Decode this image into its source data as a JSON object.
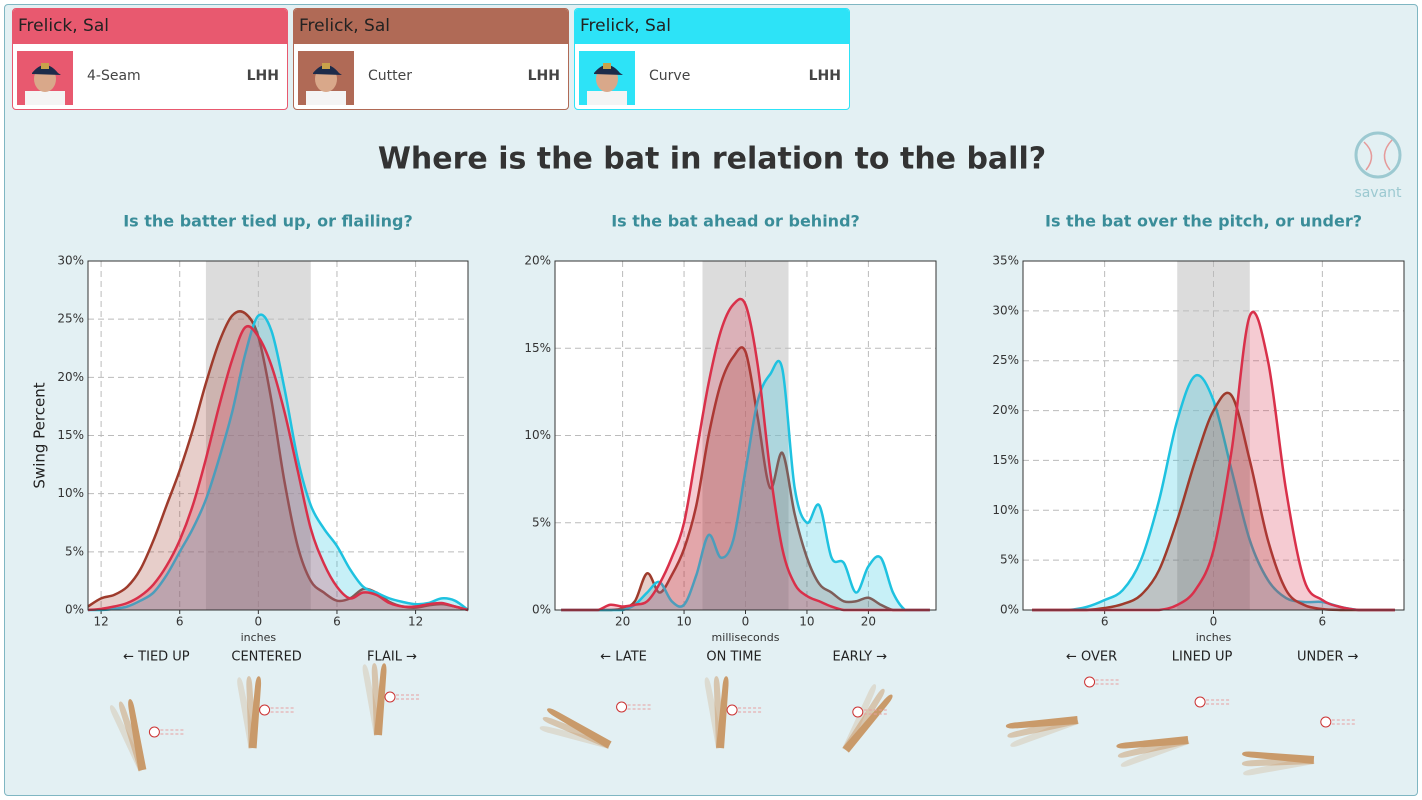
{
  "cards": [
    {
      "name": "Frelick, Sal",
      "pitch": "4-Seam",
      "hand": "LHH",
      "color": "#e8596f"
    },
    {
      "name": "Frelick, Sal",
      "pitch": "Cutter",
      "hand": "LHH",
      "color": "#b06a56"
    },
    {
      "name": "Frelick, Sal",
      "pitch": "Curve",
      "hand": "LHH",
      "color": "#2de3f7"
    }
  ],
  "title": "Where is the bat in relation to the ball?",
  "logo": "savant",
  "chart_data": [
    {
      "type": "area",
      "title": "Is the batter tied up, or flailing?",
      "y_label": "Swing Percent",
      "x_label": "inches",
      "zone_labels": [
        "← TIED UP",
        "CENTERED",
        "FLAIL →"
      ],
      "xlim": [
        -13,
        16
      ],
      "ylim": [
        0,
        30
      ],
      "highlight_range": [
        -4,
        4
      ],
      "grid": true,
      "xticks": [
        {
          "value": -12,
          "label": "12"
        },
        {
          "value": -6,
          "label": "6"
        },
        0,
        6,
        12
      ],
      "yticks": [
        {
          "value": 0,
          "label": "0%"
        },
        {
          "value": 5,
          "label": "5%"
        },
        {
          "value": 10,
          "label": "10%"
        },
        {
          "value": 15,
          "label": "15%"
        },
        {
          "value": 20,
          "label": "20%"
        },
        {
          "value": 25,
          "label": "25%"
        },
        {
          "value": 30,
          "label": "30%"
        }
      ],
      "x": [
        -13,
        -12,
        -11,
        -10,
        -9,
        -8,
        -7,
        -6,
        -5,
        -4,
        -3,
        -2,
        -1,
        0,
        1,
        2,
        3,
        4,
        5,
        6,
        7,
        8,
        9,
        10,
        11,
        12,
        13,
        14,
        15,
        16
      ],
      "series": [
        {
          "color": "#9e3b2c",
          "values": [
            0.3,
            1,
            1.3,
            2,
            3.5,
            6,
            9,
            12,
            15.5,
            19.5,
            23,
            25.3,
            25.5,
            23.5,
            18,
            11,
            5.5,
            2.5,
            1.5,
            0.8,
            1,
            1.8,
            1.5,
            0.7,
            0.3,
            0.2,
            0.4,
            0.5,
            0.3,
            0
          ]
        },
        {
          "color": "#1fc2e0",
          "values": [
            0,
            0,
            0.1,
            0.3,
            0.8,
            1.5,
            3,
            5,
            7,
            9.5,
            13,
            17,
            22,
            25.3,
            24,
            19,
            13,
            9,
            7,
            5.5,
            3.5,
            2,
            1.5,
            1,
            0.7,
            0.5,
            0.6,
            1,
            0.8,
            0
          ]
        },
        {
          "color": "#d9304a",
          "values": [
            0,
            0.1,
            0.3,
            0.6,
            1.2,
            2.2,
            3.8,
            6,
            9,
            13,
            17.5,
            21.5,
            24.3,
            23.5,
            21,
            17,
            12,
            7,
            4,
            2,
            1,
            1.5,
            1.3,
            0.6,
            0.3,
            0.3,
            0.5,
            0.6,
            0.3,
            0
          ]
        }
      ]
    },
    {
      "type": "area",
      "title": "Is the bat ahead or behind?",
      "x_label": "milliseconds",
      "zone_labels": [
        "← LATE",
        "ON TIME",
        "EARLY →"
      ],
      "xlim": [
        -31,
        31
      ],
      "ylim": [
        0,
        20
      ],
      "highlight_range": [
        -7,
        7
      ],
      "grid": true,
      "xticks": [
        {
          "value": -20,
          "label": "20"
        },
        {
          "value": -10,
          "label": "10"
        },
        0,
        10,
        20
      ],
      "yticks": [
        {
          "value": 0,
          "label": "0%"
        },
        {
          "value": 5,
          "label": "5%"
        },
        {
          "value": 10,
          "label": "10%"
        },
        {
          "value": 15,
          "label": "15%"
        },
        {
          "value": 20,
          "label": "20%"
        }
      ],
      "x": [
        -30,
        -28,
        -26,
        -24,
        -22,
        -20,
        -18,
        -16,
        -14,
        -12,
        -10,
        -8,
        -6,
        -4,
        -2,
        0,
        2,
        4,
        6,
        8,
        10,
        12,
        14,
        16,
        18,
        20,
        22,
        24,
        26,
        28,
        30
      ],
      "series": [
        {
          "color": "#9e3b2c",
          "values": [
            0,
            0,
            0,
            0,
            0,
            0.1,
            0.5,
            2.1,
            1,
            2,
            3.5,
            6,
            10,
            13,
            14.5,
            14.8,
            11,
            7,
            9,
            5.5,
            3,
            1.5,
            1,
            0.5,
            0.5,
            0.7,
            0.3,
            0,
            0,
            0,
            0
          ]
        },
        {
          "color": "#1fc2e0",
          "values": [
            0,
            0,
            0,
            0,
            0,
            0,
            0.3,
            1,
            1.6,
            0.5,
            0.3,
            2,
            4.3,
            3,
            4,
            8,
            12,
            13.5,
            13.8,
            7,
            5,
            6,
            3,
            2.7,
            1,
            2.5,
            3,
            1,
            0,
            0,
            0
          ]
        },
        {
          "color": "#d9304a",
          "values": [
            0,
            0,
            0,
            0,
            0.3,
            0.2,
            0.3,
            0.5,
            1.5,
            3,
            5,
            9,
            13,
            16,
            17.5,
            17.5,
            14,
            8,
            3.5,
            1.5,
            0.8,
            0.5,
            0.2,
            0,
            0,
            0,
            0,
            0,
            0,
            0,
            0
          ]
        }
      ]
    },
    {
      "type": "area",
      "title": "Is the bat over the pitch, or under?",
      "x_label": "inches",
      "zone_labels": [
        "← OVER",
        "LINED UP",
        "UNDER →"
      ],
      "xlim": [
        -10.5,
        10.5
      ],
      "ylim": [
        0,
        35
      ],
      "highlight_range": [
        -2,
        2
      ],
      "grid": true,
      "xticks": [
        {
          "value": -6,
          "label": "6"
        },
        0,
        6
      ],
      "yticks": [
        {
          "value": 0,
          "label": "0%"
        },
        {
          "value": 5,
          "label": "5%"
        },
        {
          "value": 10,
          "label": "10%"
        },
        {
          "value": 15,
          "label": "15%"
        },
        {
          "value": 20,
          "label": "20%"
        },
        {
          "value": 25,
          "label": "25%"
        },
        {
          "value": 30,
          "label": "30%"
        },
        {
          "value": 35,
          "label": "35%"
        }
      ],
      "x": [
        -10,
        -9,
        -8,
        -7,
        -6,
        -5,
        -4,
        -3,
        -2,
        -1,
        0,
        1,
        2,
        3,
        4,
        5,
        6,
        7,
        8,
        9,
        10
      ],
      "series": [
        {
          "color": "#1fc2e0",
          "values": [
            0,
            0,
            0,
            0.3,
            1,
            2,
            5,
            11,
            19,
            23.5,
            21,
            14,
            7,
            3,
            1.2,
            0.8,
            0.8,
            0.3,
            0,
            0,
            0
          ]
        },
        {
          "color": "#9e3b2c",
          "values": [
            0,
            0,
            0,
            0,
            0.2,
            0.6,
            1.5,
            4,
            9,
            15,
            20,
            21.5,
            15,
            7,
            2,
            0.5,
            0.1,
            0,
            0,
            0,
            0
          ]
        },
        {
          "color": "#d9304a",
          "values": [
            0,
            0,
            0,
            0,
            0,
            0,
            0,
            0,
            0.5,
            2,
            6,
            16,
            29.5,
            25,
            12,
            3,
            1,
            0.3,
            0,
            0,
            0
          ]
        }
      ]
    }
  ]
}
